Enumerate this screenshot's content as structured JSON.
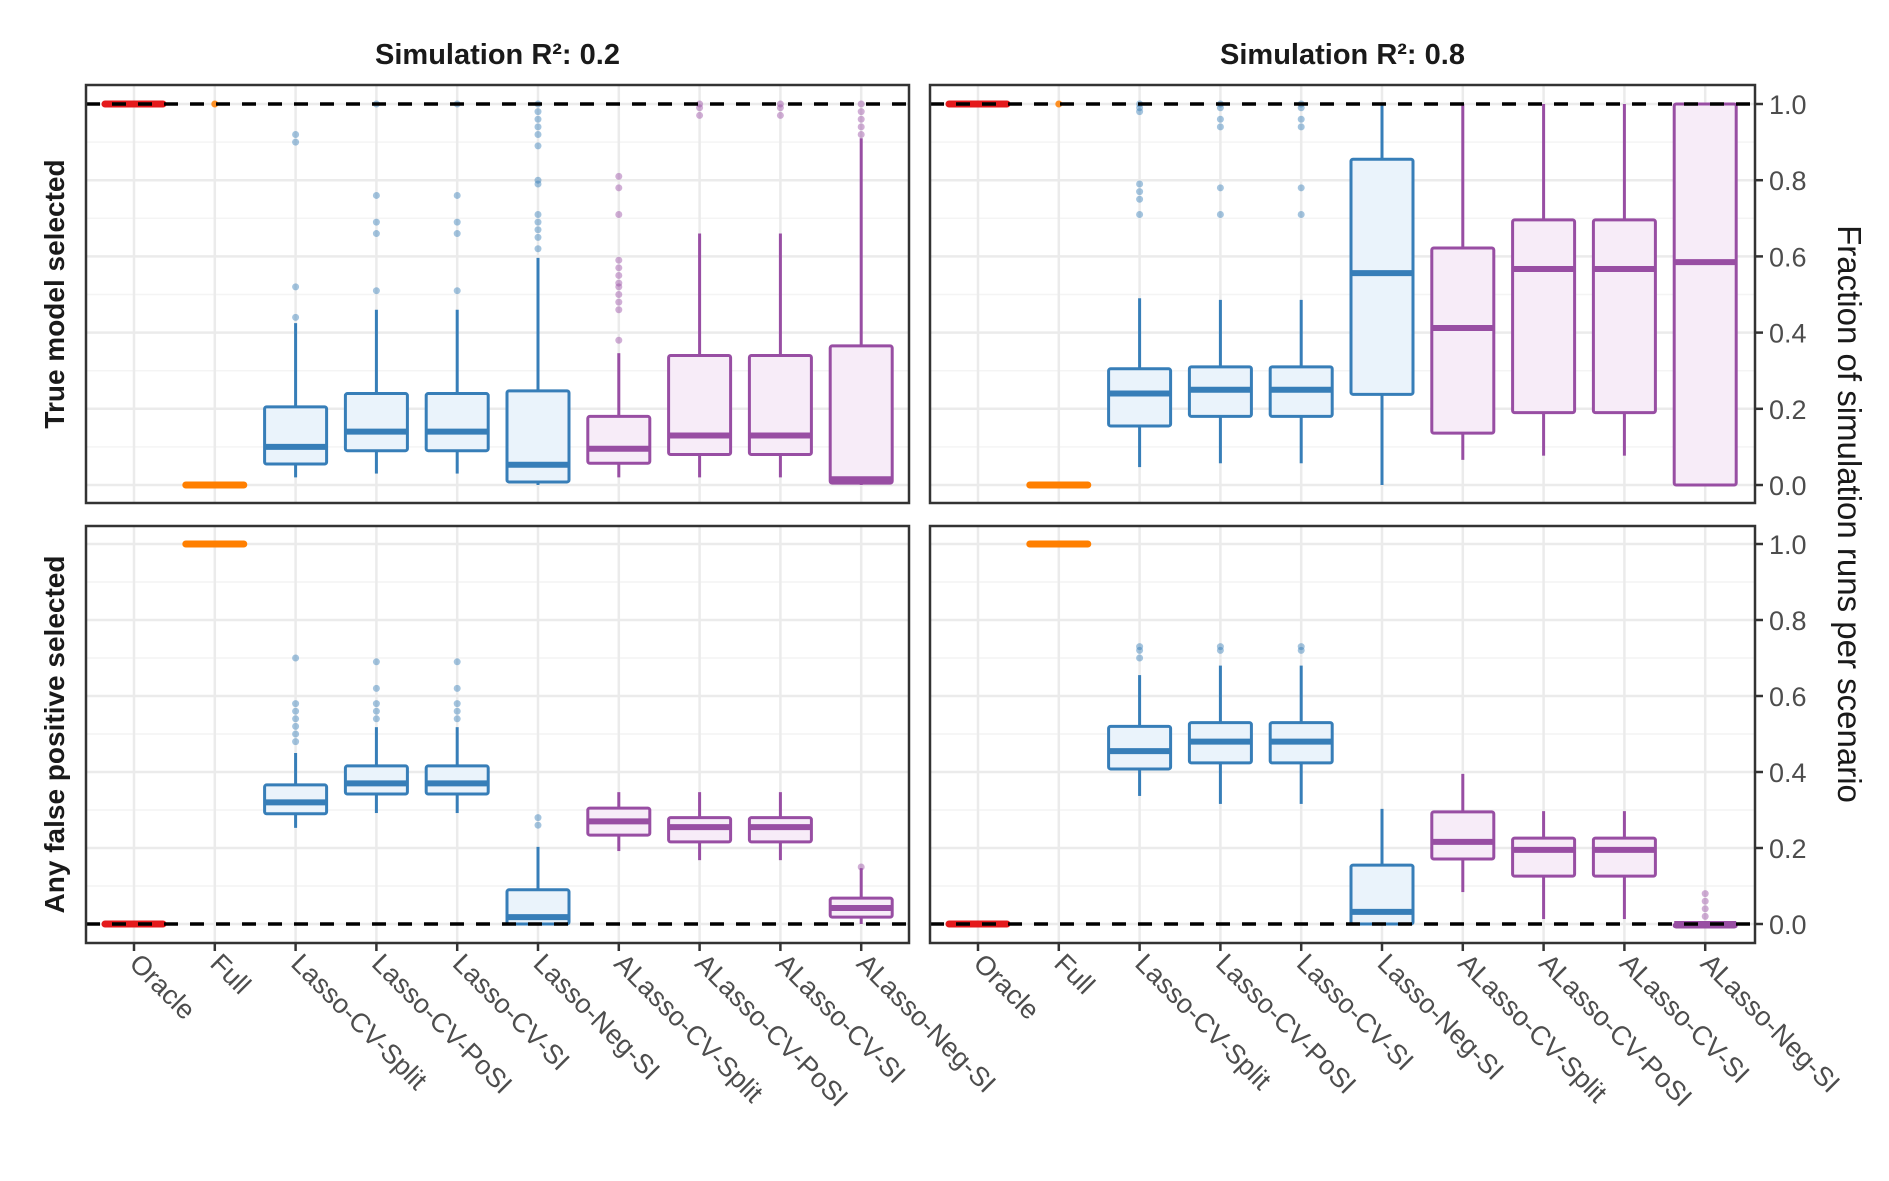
{
  "chart_data": {
    "type": "boxplot",
    "facet_columns": [
      "Simulation R²: 0.2",
      "Simulation R²: 0.8"
    ],
    "facet_rows": [
      "True model selected",
      "Any false positive selected"
    ],
    "categories": [
      "Oracle",
      "Full",
      "Lasso-CV-Split",
      "Lasso-CV-PoSI",
      "Lasso-CV-SI",
      "Lasso-Neg-SI",
      "ALasso-CV-Split",
      "ALasso-CV-PoSI",
      "ALasso-CV-SI",
      "ALasso-Neg-SI"
    ],
    "category_groups": [
      "oracle",
      "full",
      "lasso",
      "lasso",
      "lasso",
      "lasso",
      "alasso",
      "alasso",
      "alasso",
      "alasso"
    ],
    "group_colors": {
      "oracle": {
        "stroke": "#e41a1c",
        "fill": "#e41a1c"
      },
      "full": {
        "stroke": "#ff7f00",
        "fill": "#ff7f00"
      },
      "lasso": {
        "stroke": "#377eb8",
        "fill": "#eaf3fb"
      },
      "alasso": {
        "stroke": "#984ea3",
        "fill": "#f7ecf8"
      }
    },
    "ylabel": "Fraction of simulation runs per scenario",
    "xlabel": "",
    "ylim": [
      0,
      1
    ],
    "yticks": [
      "0.0",
      "0.2",
      "0.4",
      "0.6",
      "0.8",
      "1.0"
    ],
    "reference_lines": {
      "True model selected": 1.0,
      "Any false positive selected": 0.0
    },
    "grid": true,
    "panels": [
      {
        "row": "True model selected",
        "col": "Simulation R²: 0.2",
        "boxes": [
          {
            "min": 1.0,
            "q1": 1.0,
            "median": 1.0,
            "q3": 1.0,
            "max": 1.0,
            "outliers": []
          },
          {
            "min": 0.0,
            "q1": 0.0,
            "median": 0.0,
            "q3": 0.0,
            "max": 0.0,
            "outliers": [
              1.0
            ]
          },
          {
            "min": 0.02,
            "q1": 0.055,
            "median": 0.1,
            "q3": 0.205,
            "max": 0.425,
            "outliers": [
              0.52,
              0.9,
              0.92,
              0.44
            ]
          },
          {
            "min": 0.03,
            "q1": 0.09,
            "median": 0.14,
            "q3": 0.24,
            "max": 0.46,
            "outliers": [
              0.51,
              0.66,
              0.69,
              0.76,
              1.0
            ]
          },
          {
            "min": 0.03,
            "q1": 0.09,
            "median": 0.14,
            "q3": 0.24,
            "max": 0.46,
            "outliers": [
              0.51,
              0.66,
              0.69,
              0.76,
              1.0
            ]
          },
          {
            "min": 0.0,
            "q1": 0.008,
            "median": 0.053,
            "q3": 0.247,
            "max": 0.596,
            "outliers": [
              0.62,
              0.65,
              0.67,
              0.69,
              0.71,
              0.79,
              0.8,
              0.89,
              0.92,
              0.94,
              0.96,
              0.98,
              1.0
            ]
          },
          {
            "min": 0.02,
            "q1": 0.057,
            "median": 0.095,
            "q3": 0.18,
            "max": 0.346,
            "outliers": [
              0.38,
              0.46,
              0.48,
              0.5,
              0.52,
              0.53,
              0.55,
              0.57,
              0.59,
              0.71,
              0.78,
              0.81
            ]
          },
          {
            "min": 0.02,
            "q1": 0.08,
            "median": 0.13,
            "q3": 0.34,
            "max": 0.66,
            "outliers": [
              0.97,
              0.99,
              1.0
            ]
          },
          {
            "min": 0.02,
            "q1": 0.08,
            "median": 0.13,
            "q3": 0.34,
            "max": 0.66,
            "outliers": [
              0.97,
              0.99,
              1.0
            ]
          },
          {
            "min": 0.0,
            "q1": 0.005,
            "median": 0.015,
            "q3": 0.365,
            "max": 0.91,
            "outliers": [
              0.92,
              0.94,
              0.96,
              0.98,
              1.0
            ]
          }
        ]
      },
      {
        "row": "True model selected",
        "col": "Simulation R²: 0.8",
        "boxes": [
          {
            "min": 1.0,
            "q1": 1.0,
            "median": 1.0,
            "q3": 1.0,
            "max": 1.0,
            "outliers": []
          },
          {
            "min": 0.0,
            "q1": 0.0,
            "median": 0.0,
            "q3": 0.0,
            "max": 0.0,
            "outliers": [
              1.0
            ]
          },
          {
            "min": 0.047,
            "q1": 0.155,
            "median": 0.24,
            "q3": 0.305,
            "max": 0.49,
            "outliers": [
              0.71,
              0.75,
              0.77,
              0.79,
              0.98,
              0.99,
              1.0
            ]
          },
          {
            "min": 0.057,
            "q1": 0.18,
            "median": 0.25,
            "q3": 0.31,
            "max": 0.486,
            "outliers": [
              0.71,
              0.78,
              0.94,
              0.96,
              0.99,
              1.0
            ]
          },
          {
            "min": 0.057,
            "q1": 0.18,
            "median": 0.25,
            "q3": 0.31,
            "max": 0.486,
            "outliers": [
              0.71,
              0.78,
              0.94,
              0.96,
              0.99,
              1.0
            ]
          },
          {
            "min": 0.0,
            "q1": 0.238,
            "median": 0.556,
            "q3": 0.855,
            "max": 1.0,
            "outliers": []
          },
          {
            "min": 0.066,
            "q1": 0.136,
            "median": 0.412,
            "q3": 0.622,
            "max": 1.0,
            "outliers": []
          },
          {
            "min": 0.077,
            "q1": 0.19,
            "median": 0.567,
            "q3": 0.696,
            "max": 1.0,
            "outliers": []
          },
          {
            "min": 0.077,
            "q1": 0.19,
            "median": 0.567,
            "q3": 0.696,
            "max": 1.0,
            "outliers": []
          },
          {
            "min": 0.0,
            "q1": 0.0,
            "median": 0.585,
            "q3": 1.0,
            "max": 1.0,
            "outliers": []
          }
        ]
      },
      {
        "row": "Any false positive selected",
        "col": "Simulation R²: 0.2",
        "boxes": [
          {
            "min": 0.0,
            "q1": 0.0,
            "median": 0.0,
            "q3": 0.0,
            "max": 0.0,
            "outliers": []
          },
          {
            "min": 1.0,
            "q1": 1.0,
            "median": 1.0,
            "q3": 1.0,
            "max": 1.0,
            "outliers": []
          },
          {
            "min": 0.253,
            "q1": 0.29,
            "median": 0.32,
            "q3": 0.366,
            "max": 0.45,
            "outliers": [
              0.48,
              0.5,
              0.52,
              0.54,
              0.56,
              0.58,
              0.7
            ]
          },
          {
            "min": 0.292,
            "q1": 0.342,
            "median": 0.37,
            "q3": 0.416,
            "max": 0.518,
            "outliers": [
              0.54,
              0.56,
              0.58,
              0.62,
              0.69
            ]
          },
          {
            "min": 0.292,
            "q1": 0.342,
            "median": 0.37,
            "q3": 0.416,
            "max": 0.518,
            "outliers": [
              0.54,
              0.56,
              0.58,
              0.62,
              0.69
            ]
          },
          {
            "min": 0.0,
            "q1": 0.0,
            "median": 0.018,
            "q3": 0.09,
            "max": 0.203,
            "outliers": [
              0.26,
              0.28
            ]
          },
          {
            "min": 0.192,
            "q1": 0.234,
            "median": 0.27,
            "q3": 0.305,
            "max": 0.347,
            "outliers": []
          },
          {
            "min": 0.168,
            "q1": 0.216,
            "median": 0.255,
            "q3": 0.28,
            "max": 0.347,
            "outliers": []
          },
          {
            "min": 0.168,
            "q1": 0.216,
            "median": 0.255,
            "q3": 0.28,
            "max": 0.347,
            "outliers": []
          },
          {
            "min": 0.0,
            "q1": 0.018,
            "median": 0.042,
            "q3": 0.068,
            "max": 0.147,
            "outliers": [
              0.15
            ]
          }
        ]
      },
      {
        "row": "Any false positive selected",
        "col": "Simulation R²: 0.8",
        "boxes": [
          {
            "min": 0.0,
            "q1": 0.0,
            "median": 0.0,
            "q3": 0.0,
            "max": 0.0,
            "outliers": []
          },
          {
            "min": 1.0,
            "q1": 1.0,
            "median": 1.0,
            "q3": 1.0,
            "max": 1.0,
            "outliers": []
          },
          {
            "min": 0.337,
            "q1": 0.408,
            "median": 0.455,
            "q3": 0.52,
            "max": 0.655,
            "outliers": [
              0.7,
              0.72,
              0.73
            ]
          },
          {
            "min": 0.316,
            "q1": 0.424,
            "median": 0.48,
            "q3": 0.53,
            "max": 0.68,
            "outliers": [
              0.72,
              0.73
            ]
          },
          {
            "min": 0.316,
            "q1": 0.424,
            "median": 0.48,
            "q3": 0.53,
            "max": 0.68,
            "outliers": [
              0.72,
              0.73
            ]
          },
          {
            "min": 0.0,
            "q1": 0.0,
            "median": 0.032,
            "q3": 0.155,
            "max": 0.303,
            "outliers": []
          },
          {
            "min": 0.084,
            "q1": 0.171,
            "median": 0.216,
            "q3": 0.295,
            "max": 0.395,
            "outliers": []
          },
          {
            "min": 0.013,
            "q1": 0.126,
            "median": 0.195,
            "q3": 0.226,
            "max": 0.297,
            "outliers": []
          },
          {
            "min": 0.013,
            "q1": 0.126,
            "median": 0.195,
            "q3": 0.226,
            "max": 0.297,
            "outliers": []
          },
          {
            "min": 0.0,
            "q1": 0.0,
            "median": 0.0,
            "q3": 0.0,
            "max": 0.0,
            "outliers": [
              0.02,
              0.04,
              0.06,
              0.08
            ]
          }
        ]
      }
    ]
  }
}
